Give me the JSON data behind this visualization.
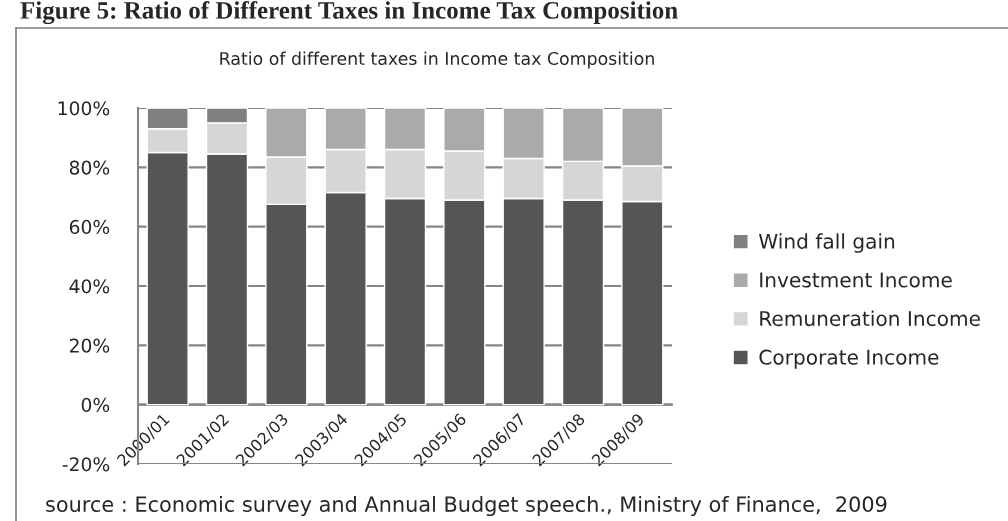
{
  "chart_data": {
    "type": "bar",
    "title": "Figure 5: Ratio of Different Taxes in Income Tax Composition",
    "subtitle": "Ratio of different taxes in Income tax Composition",
    "annotations": [
      "source : Economic survey and Annual Budget speech., Ministry of Finance,  2009"
    ],
    "categories": [
      "2000/01",
      "2001/02",
      "2002/03",
      "2003/04",
      "2004/05",
      "2005/06",
      "2006/07",
      "2007/08",
      "2008/09"
    ],
    "series": [
      {
        "name": "Corporate Income",
        "color": "#555555",
        "values": [
          85,
          84.5,
          67.5,
          71.5,
          69.5,
          69,
          69.5,
          69,
          68.5
        ]
      },
      {
        "name": "Remuneration Income",
        "color": "#d6d6d6",
        "values": [
          8,
          10.5,
          16,
          14.5,
          16.5,
          16.5,
          13.5,
          13,
          12
        ]
      },
      {
        "name": "Investment Income",
        "color": "#aaaaaa",
        "values": [
          null,
          null,
          16.5,
          14,
          14,
          14.5,
          17,
          18,
          19.5
        ]
      },
      {
        "name": "Wind fall gain",
        "color": "#808080",
        "values": [
          7,
          5,
          null,
          null,
          null,
          null,
          null,
          null,
          null
        ]
      }
    ],
    "stacked": true,
    "ylim": [
      -20,
      100
    ],
    "yticks": [
      {
        "value": -20,
        "label": "-20%"
      },
      {
        "value": 0,
        "label": "0%"
      },
      {
        "value": 20,
        "label": "20%"
      },
      {
        "value": 40,
        "label": "40%"
      },
      {
        "value": 60,
        "label": "60%"
      },
      {
        "value": 80,
        "label": "80%"
      },
      {
        "value": 100,
        "label": "100%"
      }
    ],
    "grid": "y",
    "legend": "right"
  }
}
